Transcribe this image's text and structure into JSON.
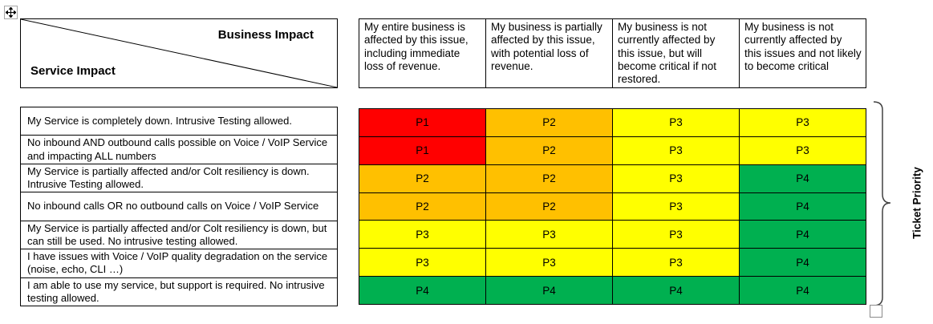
{
  "corner": {
    "top_label": "Business Impact",
    "side_label": "Service Impact"
  },
  "business_impact_levels": [
    "My entire business is affected by this issue, including immediate loss of revenue.",
    "My business is partially affected by this issue, with potential loss of revenue.",
    "My business is not currently affected by this issue, but will become critical if not restored.",
    "My business is not currently affected by this issues and not likely to become critical"
  ],
  "service_impact_levels": [
    "My Service is completely down. Intrusive Testing allowed.",
    "No inbound AND outbound calls possible on Voice / VoIP Service and impacting ALL numbers",
    "My Service is partially affected and/or Colt resiliency is down. Intrusive Testing allowed.",
    "No inbound calls OR no outbound calls on Voice / VoIP Service",
    "My Service is partially affected and/or Colt resiliency is down, but can still be used. No intrusive testing allowed.",
    "I have issues with Voice / VoIP quality degradation on the service (noise, echo, CLI …)",
    "I am able to use my service, but support is required. No intrusive testing allowed."
  ],
  "matrix": {
    "rows": [
      [
        "P1",
        "P2",
        "P3",
        "P3"
      ],
      [
        "P1",
        "P2",
        "P3",
        "P3"
      ],
      [
        "P2",
        "P2",
        "P3",
        "P4"
      ],
      [
        "P2",
        "P2",
        "P3",
        "P4"
      ],
      [
        "P3",
        "P3",
        "P3",
        "P4"
      ],
      [
        "P3",
        "P3",
        "P3",
        "P4"
      ],
      [
        "P4",
        "P4",
        "P4",
        "P4"
      ]
    ]
  },
  "priority_colors": {
    "P1": "#FF0000",
    "P2": "#FFC000",
    "P3": "#FFFF00",
    "P4": "#00B050"
  },
  "brace": {
    "label": "Ticket Priority",
    "stroke_color": "#404040"
  },
  "icons": {
    "move_handle": "move-icon"
  }
}
